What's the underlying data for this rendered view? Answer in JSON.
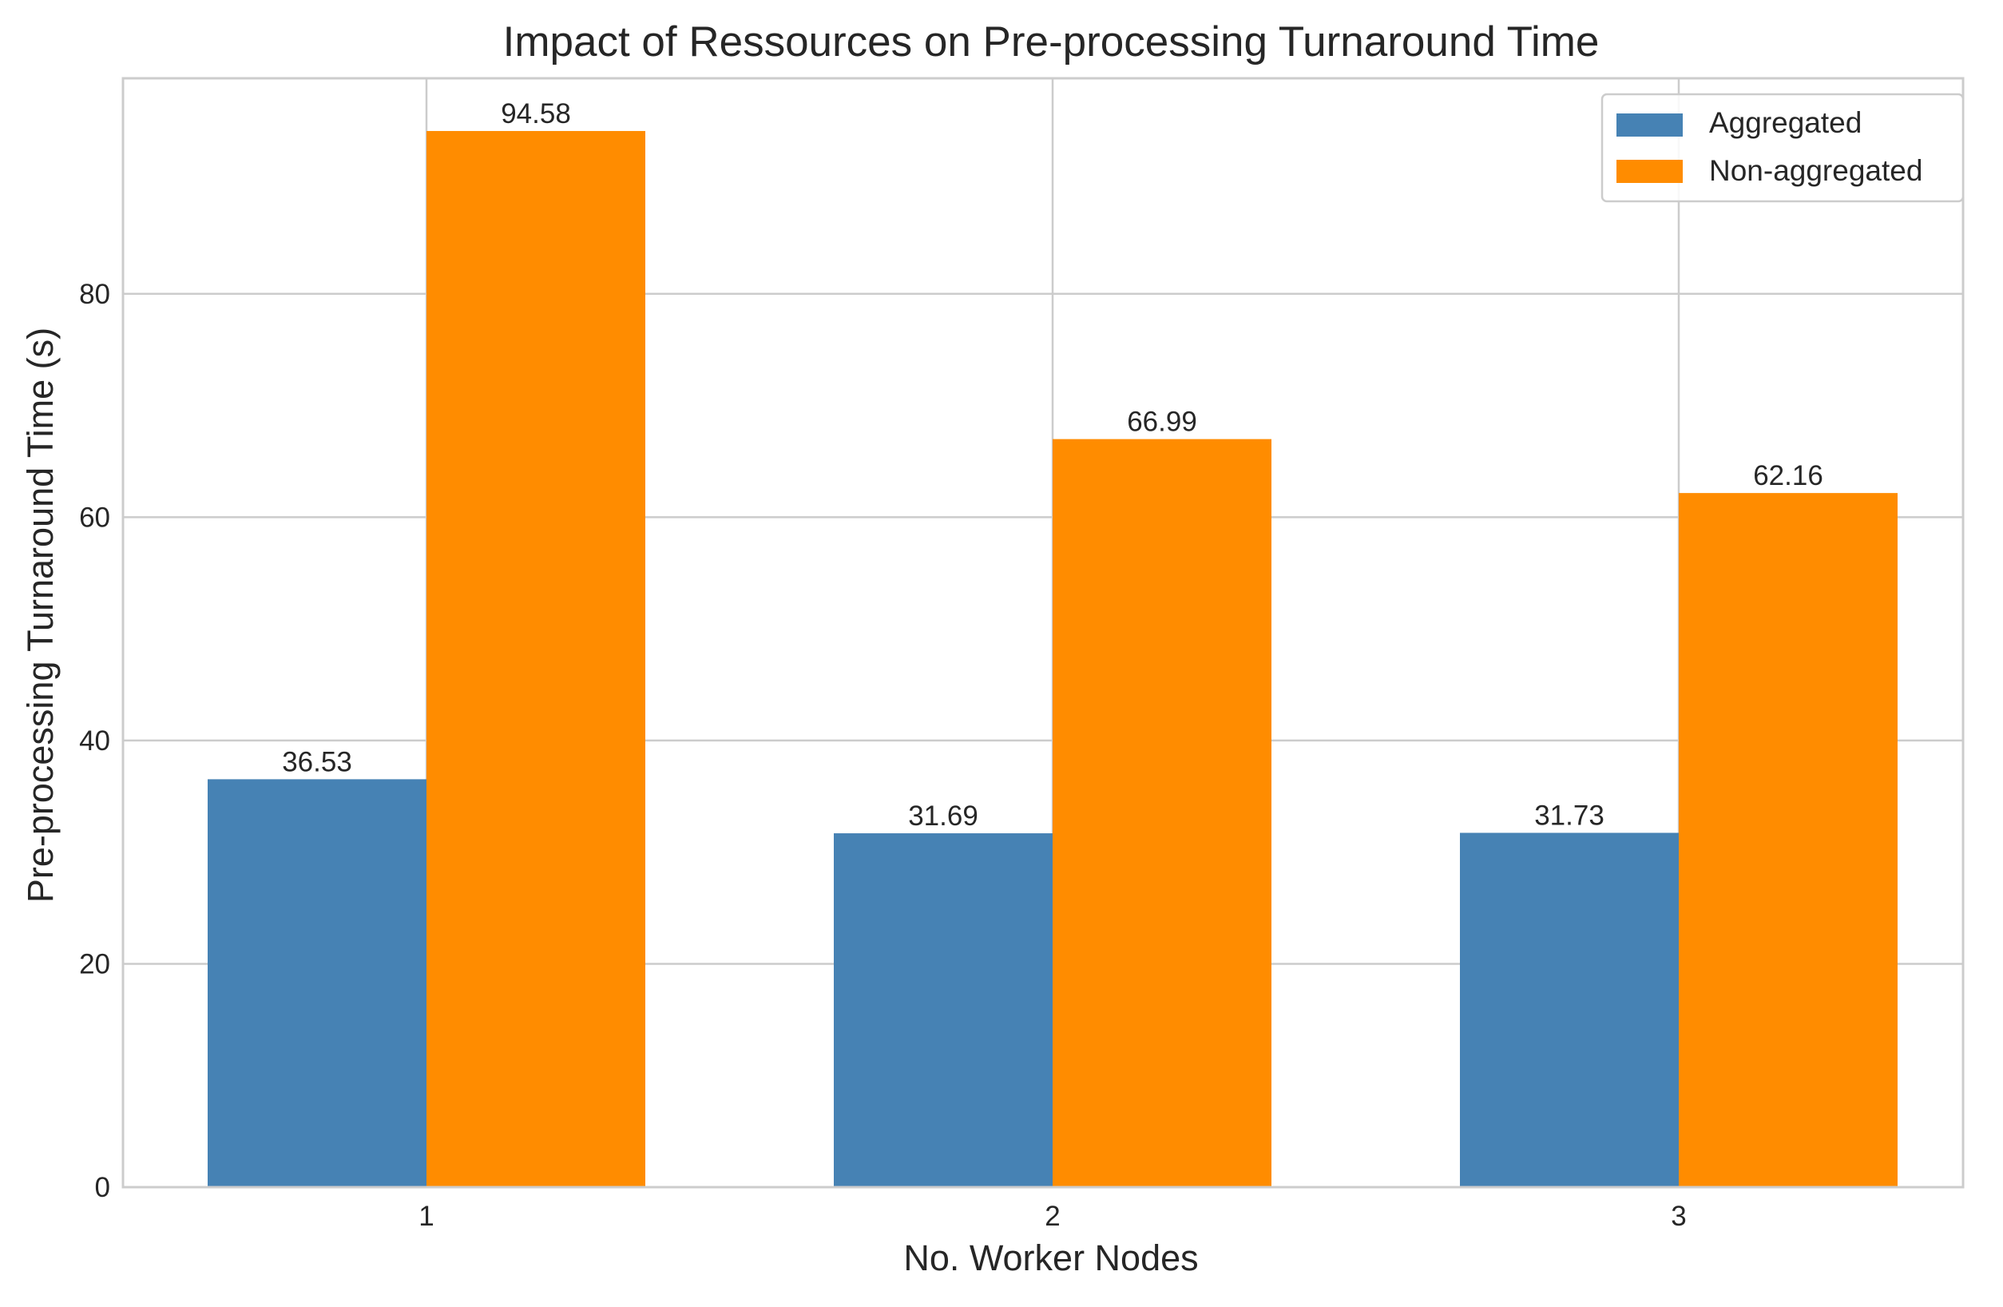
{
  "chart_data": {
    "type": "bar",
    "title": "Impact of Ressources on Pre-processing Turnaround Time",
    "xlabel": "No. Worker Nodes",
    "ylabel": "Pre-processing Turnaround Time (s)",
    "categories": [
      "1",
      "2",
      "3"
    ],
    "series": [
      {
        "name": "Aggregated",
        "color": "#4682b4",
        "values": [
          36.53,
          31.69,
          31.73
        ],
        "value_labels": [
          "36.53",
          "31.69",
          "31.73"
        ]
      },
      {
        "name": "Non-aggregated",
        "color": "#ff8c00",
        "values": [
          94.58,
          66.99,
          62.16
        ],
        "value_labels": [
          "94.58",
          "66.99",
          "62.16"
        ]
      }
    ],
    "ylim": [
      0,
      99.3
    ],
    "yticks": [
      0,
      20,
      40,
      60,
      80
    ],
    "ytick_labels": [
      "0",
      "20",
      "40",
      "60",
      "80"
    ],
    "grid": true,
    "legend_position": "top-right"
  }
}
